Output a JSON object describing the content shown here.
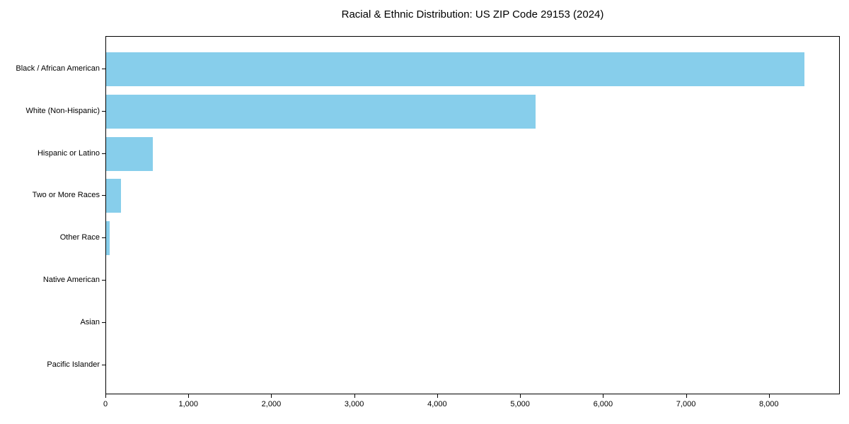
{
  "title": "Racial & Ethnic Distribution: US ZIP Code 29153 (2024)",
  "chart_data": {
    "type": "bar",
    "orientation": "horizontal",
    "title": "Racial & Ethnic Distribution: US ZIP Code 29153 (2024)",
    "xlabel": "",
    "ylabel": "",
    "categories": [
      "Black / African American",
      "White (Non-Hispanic)",
      "Hispanic or Latino",
      "Two or More Races",
      "Other Race",
      "Native American",
      "Asian",
      "Pacific Islander"
    ],
    "values": [
      8420,
      5180,
      565,
      180,
      40,
      0,
      0,
      0
    ],
    "xlim": [
      0,
      8855
    ],
    "x_ticks": [
      0,
      1000,
      2000,
      3000,
      4000,
      5000,
      6000,
      7000,
      8000
    ],
    "x_tick_labels": [
      "0",
      "1,000",
      "2,000",
      "3,000",
      "4,000",
      "5,000",
      "6,000",
      "7,000",
      "8,000"
    ],
    "bar_color": "#87CEEB",
    "background_color": "#ffffff",
    "axis_color": "#000000",
    "grid": false,
    "legend": false
  }
}
